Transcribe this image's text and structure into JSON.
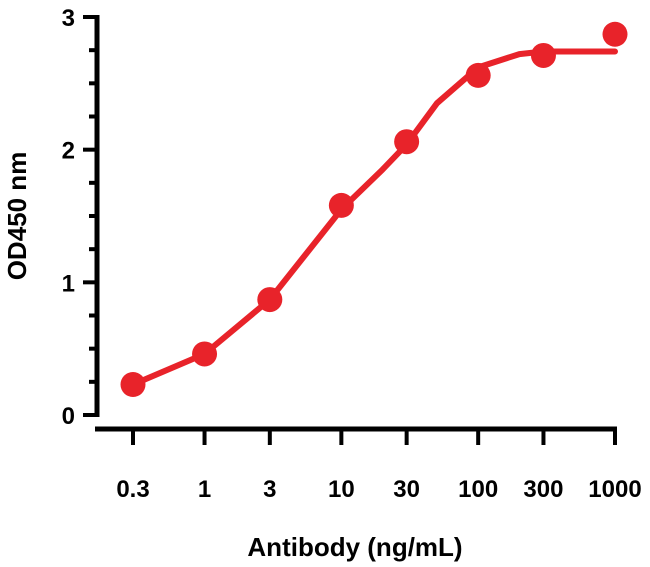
{
  "chart_data": {
    "type": "scatter",
    "title": "",
    "xlabel": "Antibody (ng/mL)",
    "ylabel": "OD450 nm",
    "x_scale": "log",
    "x_ticks": [
      0.3,
      1,
      3,
      10,
      30,
      100,
      300,
      1000
    ],
    "x_tick_labels": [
      "0.3",
      "1",
      "3",
      "10",
      "30",
      "100",
      "300",
      "1000"
    ],
    "y_ticks": [
      0,
      1,
      2,
      3
    ],
    "y_tick_labels": [
      "0",
      "1",
      "2",
      "3"
    ],
    "ylim": [
      0,
      3
    ],
    "grid": false,
    "legend": "none",
    "color": "#e8232a",
    "series": [
      {
        "x": [
          0.3,
          1,
          3,
          10,
          30,
          100,
          300,
          1000
        ],
        "y": [
          0.23,
          0.46,
          0.87,
          1.58,
          2.06,
          2.56,
          2.71,
          2.87
        ]
      }
    ],
    "fit_curve": {
      "x": [
        0.3,
        1,
        3,
        10,
        20,
        30,
        50,
        100,
        200,
        300,
        1000
      ],
      "y": [
        0.23,
        0.46,
        0.87,
        1.55,
        1.85,
        2.04,
        2.35,
        2.62,
        2.72,
        2.74,
        2.74
      ]
    }
  }
}
